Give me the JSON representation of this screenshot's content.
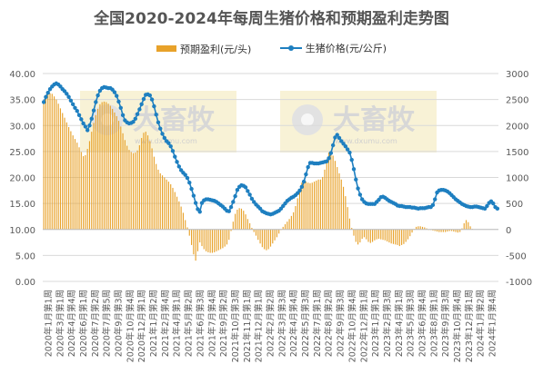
{
  "chart_data": {
    "type": "bar+line",
    "title": "全国2020-2024年每周生猪价格和预期盈利走势图",
    "legend": [
      "预期盈利(元/头)",
      "生猪价格(元/公斤)"
    ],
    "watermark": "大畜牧",
    "watermark_sub": "www.dxumu.com",
    "left_axis": {
      "min": 0,
      "max": 40,
      "ticks": [
        "0.00",
        "5.00",
        "10.00",
        "15.00",
        "20.00",
        "25.00",
        "30.00",
        "35.00",
        "40.00"
      ]
    },
    "right_axis": {
      "min": -1000,
      "max": 3000,
      "ticks": [
        "-1000",
        "-500",
        "0",
        "500",
        "1000",
        "1500",
        "2000",
        "2500",
        "3000"
      ]
    },
    "x_labels": [
      "2020年1月第1周",
      "2020年3月第1周",
      "2020年4月第4周",
      "2020年6月第1周",
      "2020年7月第2周",
      "2020年7月第5周",
      "2020年9月第3周",
      "2020年10月第4周",
      "2020年12月第1周",
      "2021年1月第2周",
      "2021年2月第4周",
      "2021年4月第1周",
      "2021年5月第2周",
      "2021年6月第3周",
      "2021年7月第4周",
      "2021年9月第2周",
      "2021年10月第3周",
      "2021年11月第1周",
      "2021年12月第1周",
      "2022年2月第2周",
      "2022年3月第3周",
      "2022年4月第4周",
      "2022年5月第3周",
      "2022年7月第1周",
      "2022年8月第2周",
      "2022年9月第3周",
      "2022年10月第4周",
      "2022年12月第1周",
      "2023年1月第1周",
      "2023年2月第3周",
      "2023年4月第1周",
      "2023年5月第3周",
      "2023年6月第4周",
      "2023年8月第1周",
      "2023年9月第3周",
      "2023年10月第4周",
      "2023年12月第1周",
      "2024年1月第2周",
      "2024年1月第4周"
    ],
    "series": [
      {
        "name": "生猪价格(元/公斤)",
        "type": "line",
        "axis": "left",
        "color": "#1E7FC0",
        "values": [
          34.5,
          35.5,
          36.3,
          37.0,
          37.5,
          37.9,
          38.1,
          37.9,
          37.5,
          37.0,
          36.6,
          36.1,
          35.5,
          34.8,
          34.1,
          33.4,
          32.8,
          32.0,
          31.2,
          30.4,
          29.8,
          29.1,
          30.0,
          31.3,
          32.9,
          34.5,
          35.8,
          36.7,
          37.2,
          37.4,
          37.3,
          37.2,
          37.2,
          36.9,
          36.4,
          35.7,
          34.6,
          33.4,
          32.0,
          31.0,
          30.6,
          30.4,
          30.5,
          30.7,
          31.3,
          32.2,
          33.1,
          34.1,
          35.1,
          35.9,
          36.0,
          35.8,
          35.0,
          33.7,
          32.1,
          30.6,
          29.4,
          28.4,
          27.6,
          27.0,
          26.6,
          26.0,
          25.1,
          24.0,
          23.0,
          22.1,
          21.4,
          20.9,
          20.5,
          19.9,
          19.0,
          17.8,
          16.5,
          15.1,
          13.9,
          13.4,
          15.1,
          15.6,
          15.8,
          15.8,
          15.7,
          15.6,
          15.5,
          15.3,
          15.0,
          14.7,
          14.4,
          14.0,
          13.6,
          13.5,
          14.3,
          15.3,
          16.4,
          17.6,
          18.2,
          18.5,
          18.4,
          18.1,
          17.4,
          16.7,
          15.9,
          15.3,
          14.8,
          14.4,
          14.0,
          13.5,
          13.3,
          13.1,
          13.0,
          12.9,
          13.0,
          13.2,
          13.4,
          13.6,
          14.0,
          14.5,
          15.0,
          15.5,
          15.8,
          16.1,
          16.3,
          16.6,
          17.0,
          17.5,
          18.2,
          19.2,
          20.6,
          22.0,
          22.8,
          22.8,
          22.7,
          22.7,
          22.7,
          22.8,
          22.9,
          23.0,
          23.1,
          23.7,
          24.7,
          26.2,
          27.7,
          28.2,
          27.6,
          27.0,
          26.5,
          26.0,
          25.4,
          24.8,
          23.4,
          21.6,
          19.6,
          17.9,
          16.7,
          15.8,
          15.3,
          15.0,
          14.9,
          14.9,
          14.9,
          14.9,
          15.3,
          15.7,
          16.2,
          16.3,
          16.1,
          15.8,
          15.5,
          15.3,
          15.1,
          14.9,
          14.6,
          14.5,
          14.5,
          14.4,
          14.3,
          14.3,
          14.3,
          14.2,
          14.2,
          14.1,
          14.0,
          14.1,
          14.1,
          14.1,
          14.2,
          14.3,
          14.3,
          14.7,
          15.8,
          17.1,
          17.5,
          17.6,
          17.6,
          17.5,
          17.3,
          17.0,
          16.6,
          16.2,
          15.8,
          15.5,
          15.2,
          14.9,
          14.7,
          14.5,
          14.4,
          14.3,
          14.3,
          14.4,
          14.4,
          14.3,
          14.2,
          14.1,
          14.0,
          14.5,
          15.1,
          15.4,
          15.0,
          14.3,
          14.0
        ]
      },
      {
        "name": "预期盈利(元/头)",
        "type": "bar",
        "axis": "right",
        "color": "#E8A22A",
        "values": [
          2480,
          2550,
          2600,
          2620,
          2610,
          2560,
          2500,
          2420,
          2330,
          2240,
          2150,
          2060,
          1970,
          1890,
          1810,
          1740,
          1670,
          1580,
          1490,
          1410,
          1430,
          1550,
          1700,
          1880,
          2050,
          2200,
          2320,
          2410,
          2450,
          2460,
          2450,
          2420,
          2380,
          2320,
          2250,
          2180,
          2090,
          1980,
          1850,
          1720,
          1610,
          1530,
          1490,
          1470,
          1480,
          1520,
          1620,
          1760,
          1860,
          1880,
          1810,
          1700,
          1560,
          1400,
          1260,
          1150,
          1080,
          1040,
          1000,
          960,
          920,
          870,
          800,
          720,
          630,
          540,
          440,
          320,
          180,
          40,
          -120,
          -300,
          -480,
          -600,
          -420,
          -250,
          -320,
          -380,
          -420,
          -440,
          -450,
          -450,
          -440,
          -420,
          -400,
          -380,
          -360,
          -330,
          -290,
          -200,
          -30,
          150,
          300,
          380,
          410,
          400,
          360,
          290,
          200,
          120,
          30,
          -50,
          -120,
          -200,
          -270,
          -340,
          -380,
          -400,
          -380,
          -330,
          -270,
          -210,
          -150,
          -80,
          -10,
          50,
          100,
          150,
          200,
          260,
          330,
          450,
          600,
          770,
          900,
          940,
          920,
          900,
          890,
          900,
          920,
          940,
          960,
          960,
          1010,
          1150,
          1320,
          1480,
          1500,
          1420,
          1320,
          1200,
          1080,
          960,
          820,
          640,
          430,
          210,
          30,
          -120,
          -240,
          -290,
          -250,
          -180,
          -150,
          -190,
          -240,
          -260,
          -240,
          -210,
          -190,
          -180,
          -190,
          -200,
          -210,
          -230,
          -250,
          -270,
          -280,
          -290,
          -300,
          -320,
          -300,
          -280,
          -240,
          -190,
          -130,
          -60,
          10,
          50,
          60,
          60,
          50,
          40,
          20,
          0,
          -10,
          -20,
          -30,
          -40,
          -50,
          -50,
          -50,
          -50,
          -40,
          -30,
          -30,
          -40,
          -50,
          -60,
          -50,
          20,
          120,
          180,
          140,
          60,
          10
        ]
      }
    ]
  }
}
